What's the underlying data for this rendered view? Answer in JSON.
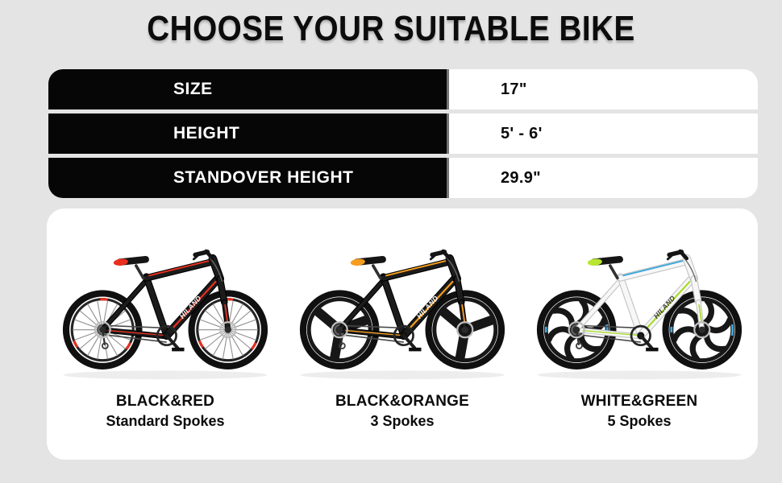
{
  "title": "CHOOSE YOUR SUITABLE BIKE",
  "colors": {
    "background": "#e4e4e4",
    "title": "#0c0c0c",
    "table_black": "#060606",
    "table_white": "#ffffff",
    "panel_bg": "#ffffff"
  },
  "spec_table": {
    "rows": [
      {
        "label": "SIZE",
        "value": "17\""
      },
      {
        "label": "HEIGHT",
        "value": "5' - 6'"
      },
      {
        "label": "STANDOVER HEIGHT",
        "value": "29.9\""
      }
    ]
  },
  "bikes": [
    {
      "name": "BLACK&RED",
      "spokes_label": "Standard Spokes",
      "brand": "HILAND",
      "wheel_type": "standard",
      "frame_color": "#1c1c1c",
      "frame_edge": "#000000",
      "accent_color": "#e8301f",
      "accent2_color": "#e8301f",
      "saddle_color": "#e8301f",
      "logo_color": "#ffffff"
    },
    {
      "name": "BLACK&ORANGE",
      "spokes_label": "3 Spokes",
      "brand": "HILAND",
      "wheel_type": "mag3",
      "frame_color": "#1c1c1c",
      "frame_edge": "#000000",
      "accent_color": "#f79d1e",
      "accent2_color": "#f79d1e",
      "saddle_color": "#f79d1e",
      "logo_color": "#ffffff"
    },
    {
      "name": "WHITE&GREEN",
      "spokes_label": "5 Spokes",
      "brand": "HILAND",
      "wheel_type": "mag6",
      "frame_color": "#f7f7f7",
      "frame_edge": "#c4c4c4",
      "accent_color": "#a8dc29",
      "accent2_color": "#3fa9dc",
      "saddle_color": "#b8e62e",
      "logo_color": "#3a3a3a"
    }
  ]
}
